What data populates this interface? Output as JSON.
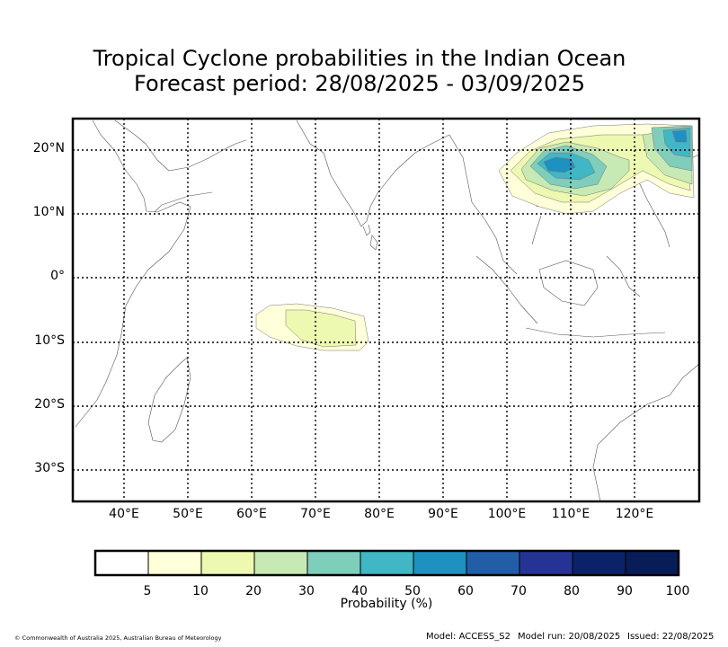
{
  "title": {
    "line1": "Tropical Cyclone probabilities in the Indian Ocean",
    "line2": "Forecast period: 28/08/2025 - 03/09/2025"
  },
  "map": {
    "lat_labels": [
      "20°N",
      "10°N",
      "0°",
      "10°S",
      "20°S",
      "30°S"
    ],
    "lon_labels": [
      "40°E",
      "50°E",
      "60°E",
      "70°E",
      "80°E",
      "90°E",
      "100°E",
      "110°E",
      "120°E"
    ],
    "lon_range": [
      32,
      130
    ],
    "lat_range": [
      -35,
      25
    ],
    "grid": "dotted"
  },
  "colorbar": {
    "title": "Probability (%)",
    "tick_labels": [
      "5",
      "10",
      "20",
      "30",
      "40",
      "50",
      "60",
      "70",
      "80",
      "90",
      "100"
    ],
    "colors": [
      "#ffffff",
      "#ffffd9",
      "#edf8b1",
      "#c7e9b4",
      "#7fcdbb",
      "#41b6c4",
      "#1d91c0",
      "#225ea8",
      "#253494",
      "#0c2268",
      "#081d58"
    ]
  },
  "footer": {
    "copyright": "© Commonwealth of Australia 2025, Australian Bureau of Meteorology",
    "model": "Model: ACCESS_S2",
    "model_run": "Model run: 20/08/2025",
    "issued": "Issued: 22/08/2025"
  }
}
